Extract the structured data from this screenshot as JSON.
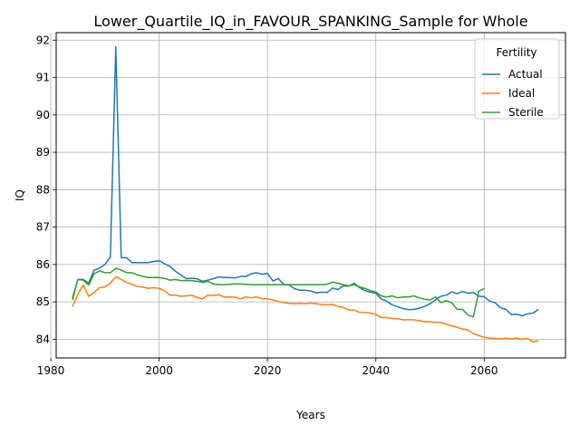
{
  "chart_data": {
    "type": "line",
    "title": "Lower_Quartile_IQ_in_FAVOUR_SPANKING_Sample for Whole",
    "xlabel": "Years",
    "ylabel": "IQ",
    "xlim": [
      1981,
      2075
    ],
    "ylim": [
      83.5,
      92.2
    ],
    "xticks": [
      1980,
      2000,
      2020,
      2040,
      2060
    ],
    "yticks": [
      84,
      85,
      86,
      87,
      88,
      89,
      90,
      91,
      92
    ],
    "grid": true,
    "legend": {
      "title": "Fertility",
      "position": "top-right"
    },
    "series": [
      {
        "name": "Actual",
        "color": "#1f77b4",
        "points": [
          [
            1984,
            85.1
          ],
          [
            1985,
            85.6
          ],
          [
            1986,
            85.6
          ],
          [
            1987,
            85.5
          ],
          [
            1988,
            85.85
          ],
          [
            1989,
            85.9
          ],
          [
            1990,
            86.0
          ],
          [
            1991,
            86.2
          ],
          [
            1992,
            91.82
          ],
          [
            1993,
            86.18
          ],
          [
            1994,
            86.18
          ],
          [
            1995,
            86.05
          ],
          [
            1996,
            86.05
          ],
          [
            1997,
            86.05
          ],
          [
            1998,
            86.05
          ],
          [
            1999,
            86.08
          ],
          [
            2000,
            86.1
          ],
          [
            2001,
            86.02
          ],
          [
            2002,
            85.95
          ],
          [
            2003,
            85.82
          ],
          [
            2004,
            85.72
          ],
          [
            2005,
            85.62
          ],
          [
            2006,
            85.63
          ],
          [
            2007,
            85.62
          ],
          [
            2008,
            85.55
          ],
          [
            2009,
            85.58
          ],
          [
            2010,
            85.62
          ],
          [
            2011,
            85.67
          ],
          [
            2012,
            85.65
          ],
          [
            2013,
            85.65
          ],
          [
            2014,
            85.64
          ],
          [
            2015,
            85.68
          ],
          [
            2016,
            85.68
          ],
          [
            2017,
            85.75
          ],
          [
            2018,
            85.78
          ],
          [
            2019,
            85.74
          ],
          [
            2020,
            85.76
          ],
          [
            2021,
            85.56
          ],
          [
            2022,
            85.62
          ],
          [
            2023,
            85.47
          ],
          [
            2024,
            85.45
          ],
          [
            2025,
            85.35
          ],
          [
            2026,
            85.31
          ],
          [
            2027,
            85.31
          ],
          [
            2028,
            85.29
          ],
          [
            2029,
            85.24
          ],
          [
            2030,
            85.26
          ],
          [
            2031,
            85.25
          ],
          [
            2032,
            85.37
          ],
          [
            2033,
            85.33
          ],
          [
            2034,
            85.43
          ],
          [
            2035,
            85.42
          ],
          [
            2036,
            85.5
          ],
          [
            2037,
            85.38
          ],
          [
            2038,
            85.3
          ],
          [
            2039,
            85.26
          ],
          [
            2040,
            85.23
          ],
          [
            2041,
            85.08
          ],
          [
            2042,
            85.02
          ],
          [
            2043,
            84.92
          ],
          [
            2044,
            84.87
          ],
          [
            2045,
            84.82
          ],
          [
            2046,
            84.79
          ],
          [
            2047,
            84.8
          ],
          [
            2048,
            84.83
          ],
          [
            2049,
            84.88
          ],
          [
            2050,
            84.95
          ],
          [
            2051,
            85.05
          ],
          [
            2052,
            85.15
          ],
          [
            2053,
            85.18
          ],
          [
            2054,
            85.27
          ],
          [
            2055,
            85.22
          ],
          [
            2056,
            85.28
          ],
          [
            2057,
            85.23
          ],
          [
            2058,
            85.25
          ],
          [
            2059,
            85.15
          ],
          [
            2060,
            85.14
          ],
          [
            2061,
            85.02
          ],
          [
            2062,
            84.98
          ],
          [
            2063,
            84.84
          ],
          [
            2064,
            84.8
          ],
          [
            2065,
            84.66
          ],
          [
            2066,
            84.67
          ],
          [
            2067,
            84.63
          ],
          [
            2068,
            84.68
          ],
          [
            2069,
            84.7
          ],
          [
            2070,
            84.8
          ]
        ]
      },
      {
        "name": "Ideal",
        "color": "#ff7f0e",
        "points": [
          [
            1984,
            84.87
          ],
          [
            1985,
            85.2
          ],
          [
            1986,
            85.45
          ],
          [
            1987,
            85.15
          ],
          [
            1988,
            85.25
          ],
          [
            1989,
            85.38
          ],
          [
            1990,
            85.4
          ],
          [
            1991,
            85.5
          ],
          [
            1992,
            85.67
          ],
          [
            1993,
            85.6
          ],
          [
            1994,
            85.52
          ],
          [
            1995,
            85.47
          ],
          [
            1996,
            85.41
          ],
          [
            1997,
            85.4
          ],
          [
            1998,
            85.36
          ],
          [
            1999,
            85.38
          ],
          [
            2000,
            85.36
          ],
          [
            2001,
            85.3
          ],
          [
            2002,
            85.18
          ],
          [
            2003,
            85.18
          ],
          [
            2004,
            85.15
          ],
          [
            2005,
            85.16
          ],
          [
            2006,
            85.18
          ],
          [
            2007,
            85.12
          ],
          [
            2008,
            85.08
          ],
          [
            2009,
            85.18
          ],
          [
            2010,
            85.17
          ],
          [
            2011,
            85.19
          ],
          [
            2012,
            85.13
          ],
          [
            2013,
            85.13
          ],
          [
            2014,
            85.13
          ],
          [
            2015,
            85.08
          ],
          [
            2016,
            85.13
          ],
          [
            2017,
            85.11
          ],
          [
            2018,
            85.13
          ],
          [
            2019,
            85.08
          ],
          [
            2020,
            85.08
          ],
          [
            2021,
            85.05
          ],
          [
            2022,
            85.01
          ],
          [
            2023,
            84.98
          ],
          [
            2024,
            84.96
          ],
          [
            2025,
            84.95
          ],
          [
            2026,
            84.96
          ],
          [
            2027,
            84.95
          ],
          [
            2028,
            84.97
          ],
          [
            2029,
            84.95
          ],
          [
            2030,
            84.93
          ],
          [
            2031,
            84.92
          ],
          [
            2032,
            84.93
          ],
          [
            2033,
            84.88
          ],
          [
            2034,
            84.85
          ],
          [
            2035,
            84.78
          ],
          [
            2036,
            84.78
          ],
          [
            2037,
            84.72
          ],
          [
            2038,
            84.72
          ],
          [
            2039,
            84.7
          ],
          [
            2040,
            84.67
          ],
          [
            2041,
            84.58
          ],
          [
            2042,
            84.58
          ],
          [
            2043,
            84.55
          ],
          [
            2044,
            84.55
          ],
          [
            2045,
            84.52
          ],
          [
            2046,
            84.52
          ],
          [
            2047,
            84.52
          ],
          [
            2048,
            84.5
          ],
          [
            2049,
            84.47
          ],
          [
            2050,
            84.47
          ],
          [
            2051,
            84.45
          ],
          [
            2052,
            84.45
          ],
          [
            2053,
            84.4
          ],
          [
            2054,
            84.36
          ],
          [
            2055,
            84.32
          ],
          [
            2056,
            84.27
          ],
          [
            2057,
            84.25
          ],
          [
            2058,
            84.15
          ],
          [
            2059,
            84.1
          ],
          [
            2060,
            84.05
          ],
          [
            2061,
            84.03
          ],
          [
            2062,
            84.02
          ],
          [
            2063,
            84.01
          ],
          [
            2064,
            84.03
          ],
          [
            2065,
            84.01
          ],
          [
            2066,
            84.03
          ],
          [
            2067,
            84.0
          ],
          [
            2068,
            84.02
          ],
          [
            2069,
            83.93
          ],
          [
            2070,
            83.96
          ]
        ]
      },
      {
        "name": "Sterile",
        "color": "#2ca02c",
        "points": [
          [
            1984,
            85.05
          ],
          [
            1985,
            85.6
          ],
          [
            1986,
            85.58
          ],
          [
            1987,
            85.45
          ],
          [
            1988,
            85.75
          ],
          [
            1989,
            85.83
          ],
          [
            1990,
            85.78
          ],
          [
            1991,
            85.78
          ],
          [
            1992,
            85.9
          ],
          [
            1993,
            85.85
          ],
          [
            1994,
            85.78
          ],
          [
            1995,
            85.78
          ],
          [
            1996,
            85.72
          ],
          [
            1997,
            85.68
          ],
          [
            1998,
            85.65
          ],
          [
            1999,
            85.65
          ],
          [
            2000,
            85.65
          ],
          [
            2001,
            85.63
          ],
          [
            2002,
            85.58
          ],
          [
            2003,
            85.6
          ],
          [
            2004,
            85.57
          ],
          [
            2005,
            85.57
          ],
          [
            2006,
            85.57
          ],
          [
            2007,
            85.55
          ],
          [
            2008,
            85.52
          ],
          [
            2009,
            85.55
          ],
          [
            2010,
            85.48
          ],
          [
            2011,
            85.46
          ],
          [
            2012,
            85.46
          ],
          [
            2013,
            85.47
          ],
          [
            2014,
            85.48
          ],
          [
            2015,
            85.48
          ],
          [
            2016,
            85.47
          ],
          [
            2017,
            85.46
          ],
          [
            2018,
            85.46
          ],
          [
            2019,
            85.46
          ],
          [
            2020,
            85.46
          ],
          [
            2021,
            85.46
          ],
          [
            2022,
            85.46
          ],
          [
            2023,
            85.46
          ],
          [
            2024,
            85.46
          ],
          [
            2025,
            85.46
          ],
          [
            2026,
            85.46
          ],
          [
            2027,
            85.46
          ],
          [
            2028,
            85.46
          ],
          [
            2029,
            85.46
          ],
          [
            2030,
            85.46
          ],
          [
            2031,
            85.47
          ],
          [
            2032,
            85.53
          ],
          [
            2033,
            85.5
          ],
          [
            2034,
            85.46
          ],
          [
            2035,
            85.43
          ],
          [
            2036,
            85.46
          ],
          [
            2037,
            85.4
          ],
          [
            2038,
            85.36
          ],
          [
            2039,
            85.3
          ],
          [
            2040,
            85.26
          ],
          [
            2041,
            85.16
          ],
          [
            2042,
            85.13
          ],
          [
            2043,
            85.16
          ],
          [
            2044,
            85.11
          ],
          [
            2045,
            85.13
          ],
          [
            2046,
            85.13
          ],
          [
            2047,
            85.16
          ],
          [
            2048,
            85.11
          ],
          [
            2049,
            85.07
          ],
          [
            2050,
            85.05
          ],
          [
            2051,
            85.13
          ],
          [
            2052,
            84.98
          ],
          [
            2053,
            85.03
          ],
          [
            2054,
            84.98
          ],
          [
            2055,
            84.8
          ],
          [
            2056,
            84.8
          ],
          [
            2057,
            84.65
          ],
          [
            2058,
            84.6
          ],
          [
            2059,
            85.28
          ],
          [
            2060,
            85.36
          ]
        ]
      }
    ]
  }
}
